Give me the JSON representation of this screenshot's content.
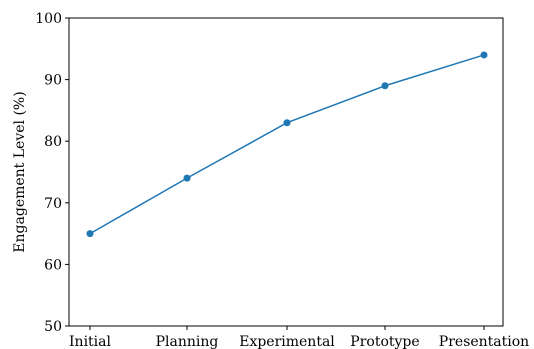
{
  "chart_data": {
    "type": "line",
    "title": "",
    "xlabel": "",
    "ylabel": "Engagement Level (%)",
    "categories": [
      "Initial",
      "Planning",
      "Experimental",
      "Prototype",
      "Presentation"
    ],
    "series": [
      {
        "values": [
          65,
          74,
          83,
          89,
          94
        ],
        "color": "#1f77b4"
      }
    ],
    "ylim": [
      50,
      100
    ],
    "yticks": [
      50,
      60,
      70,
      80,
      90,
      100
    ],
    "grid": false,
    "legend": "none"
  }
}
